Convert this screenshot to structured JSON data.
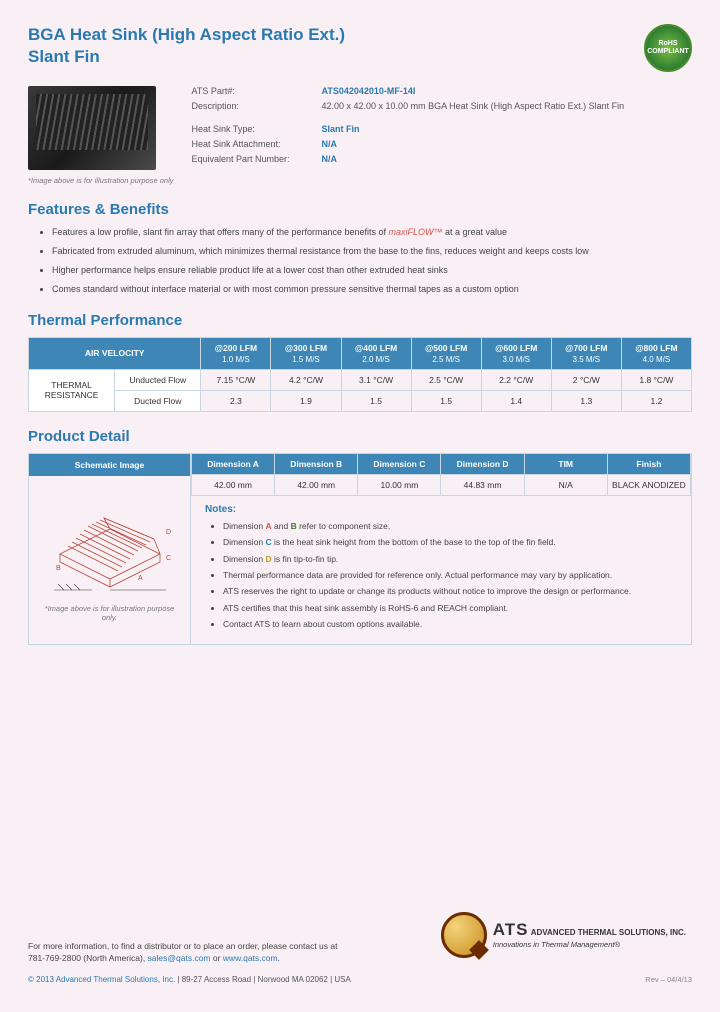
{
  "header": {
    "title_line1": "BGA Heat Sink (High Aspect Ratio Ext.)",
    "title_line2": "Slant Fin",
    "rohs": "RoHS COMPLIANT"
  },
  "info": {
    "part_label": "ATS Part#:",
    "part_value": "ATS042042010-MF-14I",
    "desc_label": "Description:",
    "desc_value": "42.00 x 42.00 x 10.00 mm  BGA Heat Sink (High Aspect Ratio Ext.) Slant Fin",
    "type_label": "Heat Sink Type:",
    "type_value": "Slant Fin",
    "attach_label": "Heat Sink Attachment:",
    "attach_value": "N/A",
    "equiv_label": "Equivalent Part Number:",
    "equiv_value": "N/A",
    "img_note": "*Image above is for illustration purpose only"
  },
  "features": {
    "heading": "Features & Benefits",
    "items": [
      {
        "pre": "Features a low profile, slant fin array that offers many of the performance benefits of ",
        "brand": "maxiFLOW™",
        "post": " at a great value"
      },
      {
        "pre": "Fabricated from extruded aluminum, which minimizes thermal resistance from the base to the fins, reduces weight and keeps costs low",
        "brand": "",
        "post": ""
      },
      {
        "pre": "Higher performance helps ensure reliable product life at a lower cost than other extruded heat sinks",
        "brand": "",
        "post": ""
      },
      {
        "pre": "Comes standard without interface material or with most common pressure sensitive thermal tapes as a custom option",
        "brand": "",
        "post": ""
      }
    ]
  },
  "thermal": {
    "heading": "Thermal Performance",
    "air_velocity": "AIR VELOCITY",
    "row_head": "THERMAL RESISTANCE",
    "cols": [
      {
        "top": "@200 LFM",
        "sub": "1.0 M/S"
      },
      {
        "top": "@300 LFM",
        "sub": "1.5 M/S"
      },
      {
        "top": "@400 LFM",
        "sub": "2.0 M/S"
      },
      {
        "top": "@500 LFM",
        "sub": "2.5 M/S"
      },
      {
        "top": "@600 LFM",
        "sub": "3.0 M/S"
      },
      {
        "top": "@700 LFM",
        "sub": "3.5 M/S"
      },
      {
        "top": "@800 LFM",
        "sub": "4.0 M/S"
      }
    ],
    "rows": [
      {
        "label": "Unducted Flow",
        "vals": [
          "7.15 °C/W",
          "4.2 °C/W",
          "3.1 °C/W",
          "2.5 °C/W",
          "2.2 °C/W",
          "2 °C/W",
          "1.8 °C/W"
        ]
      },
      {
        "label": "Ducted Flow",
        "vals": [
          "2.3",
          "1.9",
          "1.5",
          "1.5",
          "1.4",
          "1.3",
          "1.2"
        ]
      }
    ]
  },
  "detail": {
    "heading": "Product Detail",
    "schematic_head": "Schematic Image",
    "schematic_note": "*Image above is for illustration purpose only.",
    "dim_heads": [
      "Dimension A",
      "Dimension B",
      "Dimension C",
      "Dimension D",
      "TIM",
      "Finish"
    ],
    "dim_vals": [
      "42.00 mm",
      "42.00 mm",
      "10.00 mm",
      "44.83 mm",
      "N/A",
      "BLACK ANODIZED"
    ],
    "notes_h": "Notes:",
    "notes": [
      "Dimension <A>A</A> and <B>B</B> refer to component size.",
      "Dimension <C>C</C> is the heat sink height from the bottom of the base to the top of the fin field.",
      "Dimension <D>D</D> is fin tip-to-fin tip.",
      "Thermal performance data are provided for reference only. Actual performance may vary by application.",
      "ATS reserves the right to update or change its products without notice to improve the design or performance.",
      "ATS certifies that this heat sink assembly is RoHS-6 and REACH compliant.",
      "Contact ATS to learn about custom options available."
    ]
  },
  "footer": {
    "line1": "For more information, to find a distributor or to place an order, please contact us at",
    "phone": "781-769-2800 (North America)",
    "email": "sales@qats.com",
    "or": " or ",
    "url": "www.qats.com",
    "copyright_c": "© 2013 Advanced Thermal Solutions, Inc.",
    "copyright_rest": " | 89-27 Access Road | Norwood MA  02062 | USA",
    "rev": "Rev – 04/4/13",
    "ats_big": "ATS",
    "ats_name": "ADVANCED THERMAL SOLUTIONS, INC.",
    "ats_tag": "Innovations in Thermal Management®"
  },
  "colors": {
    "accent": "#2a7ab0",
    "table_header": "#3d86b5",
    "background": "#f9f0f5",
    "border": "#c9d6e0"
  }
}
